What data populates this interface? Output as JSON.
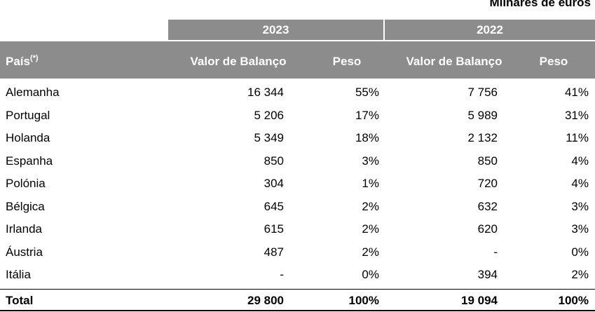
{
  "units_label": "Milhares de euros",
  "years": [
    "2023",
    "2022"
  ],
  "columns": {
    "country": "País",
    "country_note": "(*)",
    "value_2023": "Valor de Balanço",
    "weight_2023": "Peso",
    "value_2022": "Valor de Balanço",
    "weight_2022": "Peso"
  },
  "rows": [
    {
      "country": "Alemanha",
      "value_2023": "16 344",
      "weight_2023": "55%",
      "value_2022": "7 756",
      "weight_2022": "41%"
    },
    {
      "country": "Portugal",
      "value_2023": "5 206",
      "weight_2023": "17%",
      "value_2022": "5 989",
      "weight_2022": "31%"
    },
    {
      "country": "Holanda",
      "value_2023": "5 349",
      "weight_2023": "18%",
      "value_2022": "2 132",
      "weight_2022": "11%"
    },
    {
      "country": "Espanha",
      "value_2023": "850",
      "weight_2023": "3%",
      "value_2022": "850",
      "weight_2022": "4%"
    },
    {
      "country": "Polónia",
      "value_2023": "304",
      "weight_2023": "1%",
      "value_2022": "720",
      "weight_2022": "4%"
    },
    {
      "country": "Bélgica",
      "value_2023": "645",
      "weight_2023": "2%",
      "value_2022": "632",
      "weight_2022": "3%"
    },
    {
      "country": "Irlanda",
      "value_2023": "615",
      "weight_2023": "2%",
      "value_2022": "620",
      "weight_2022": "3%"
    },
    {
      "country": "Áustria",
      "value_2023": "487",
      "weight_2023": "2%",
      "value_2022": "-",
      "weight_2022": "0%"
    },
    {
      "country": "Itália",
      "value_2023": "-",
      "weight_2023": "0%",
      "value_2022": "394",
      "weight_2022": "2%"
    }
  ],
  "total": {
    "label": "Total",
    "value_2023": "29 800",
    "weight_2023": "100%",
    "value_2022": "19 094",
    "weight_2022": "100%"
  }
}
